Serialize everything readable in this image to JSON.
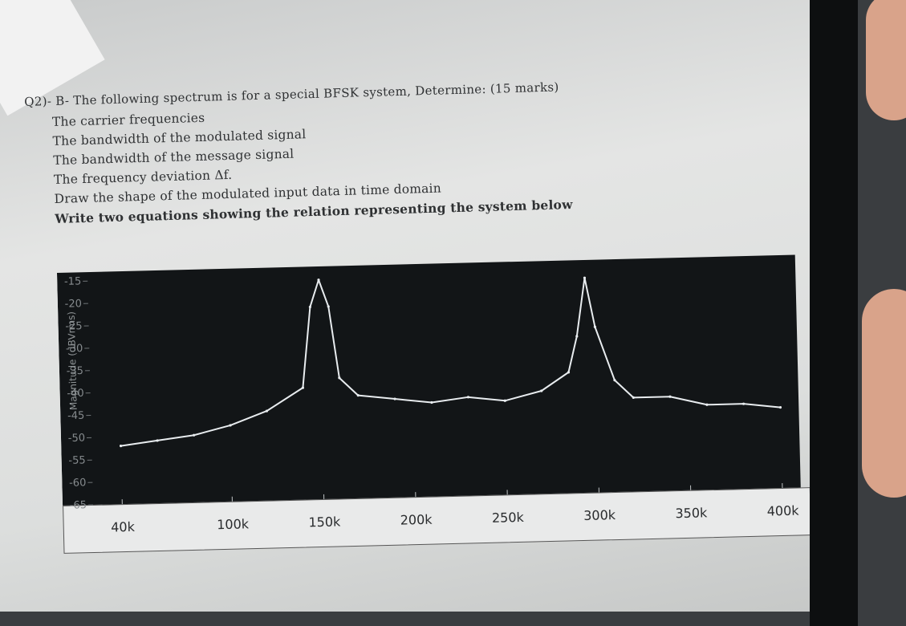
{
  "question": {
    "title": "Q2)- B- The following spectrum is for a special BFSK system, Determine: (15 marks)",
    "items": [
      "The carrier frequencies",
      "The bandwidth of the modulated signal",
      "The bandwidth of the message signal",
      "The frequency deviation Δf.",
      "Draw the shape of the modulated input data in time domain",
      "Write two equations showing the relation representing the system below"
    ]
  },
  "chart_data": {
    "type": "line",
    "ylabel": "Magnitude (dBVrms)",
    "y_ticks": [
      "-15",
      "-20",
      "-25",
      "-30",
      "-35",
      "-40",
      "-45",
      "-50",
      "-55",
      "-60",
      "-65"
    ],
    "x_ticks": [
      "40k",
      "100k",
      "150k",
      "200k",
      "250k",
      "300k",
      "350k",
      "400k"
    ],
    "x": [
      40,
      60,
      80,
      100,
      120,
      140,
      145,
      150,
      155,
      160,
      170,
      190,
      210,
      230,
      250,
      270,
      285,
      290,
      295,
      300,
      310,
      320,
      340,
      360,
      380,
      400
    ],
    "y": [
      -52,
      -51,
      -50,
      -48,
      -45,
      -40,
      -22,
      -16,
      -22,
      -38,
      -42,
      -43,
      -44,
      -43,
      -44,
      -42,
      -38,
      -30,
      -17,
      -28,
      -40,
      -44,
      -44,
      -46,
      -46,
      -47
    ],
    "xlim": [
      25,
      410
    ],
    "ylim": [
      -65,
      -13
    ],
    "line_color": "#e8ecef",
    "background": "#121517",
    "grid": false
  }
}
